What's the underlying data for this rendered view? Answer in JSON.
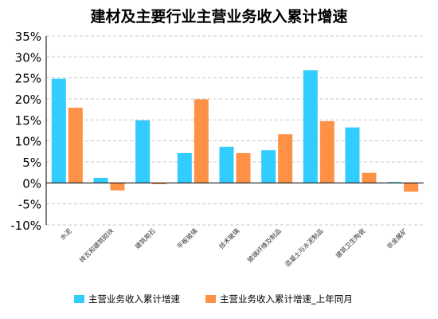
{
  "chart_data": {
    "type": "bar",
    "title": "建材及主要行业主营业务收入累计增速",
    "xlabel": "",
    "ylabel": "",
    "ylim": [
      -10,
      35
    ],
    "yticks": [
      -10,
      -5,
      0,
      5,
      10,
      15,
      20,
      25,
      30,
      35
    ],
    "ytick_format": "%",
    "grid": true,
    "legend_position": "bottom",
    "categories": [
      "水泥",
      "砖瓦和建筑砌块",
      "建筑用石",
      "平板玻璃",
      "技术玻璃",
      "玻璃纤维及制品",
      "混凝土与水泥制品",
      "建筑卫生陶瓷",
      "非金属矿"
    ],
    "series": [
      {
        "name": "主营业务收入累计增速",
        "color": "#33CCFF",
        "values": [
          24.8,
          1.2,
          14.9,
          7.1,
          8.6,
          7.8,
          26.8,
          13.2,
          0.2
        ]
      },
      {
        "name": "主营业务收入累计增速_上年同月",
        "color": "#FF9147",
        "values": [
          17.9,
          -1.8,
          -0.3,
          19.9,
          7.1,
          11.6,
          14.7,
          2.4,
          -2.1
        ]
      }
    ]
  }
}
